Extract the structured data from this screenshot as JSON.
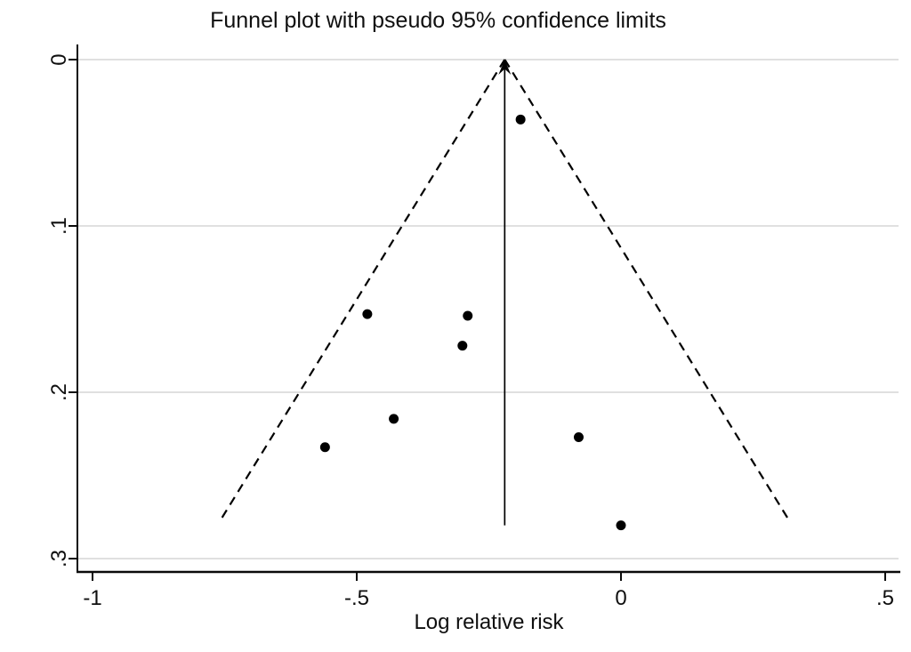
{
  "title": "Funnel plot with pseudo 95% confidence limits",
  "colors": {
    "background": "#ffffff",
    "axis": "#0a0a0a",
    "grid": "#dcdcdc",
    "point": "#000000",
    "funnel_line": "#000000",
    "text": "#0f0f0f"
  },
  "chart_data": {
    "type": "scatter",
    "subtype": "funnel-plot",
    "title": "Funnel plot with pseudo 95% confidence limits",
    "xlabel": "Log relative risk",
    "ylabel": "",
    "x_ticks": {
      "labels": [
        "-1",
        "-.5",
        "0",
        ".5"
      ],
      "values": [
        -1,
        -0.5,
        0,
        0.5
      ]
    },
    "y_ticks": {
      "labels": [
        "0",
        ".1",
        ".2",
        ".3"
      ],
      "values": [
        0,
        0.1,
        0.2,
        0.3
      ]
    },
    "xlim": [
      -1.03,
      0.53
    ],
    "ylim": [
      0,
      0.308
    ],
    "y_axis_inverted": true,
    "grid": true,
    "legend": false,
    "points": [
      {
        "x": -0.19,
        "y": 0.036
      },
      {
        "x": -0.48,
        "y": 0.153
      },
      {
        "x": -0.29,
        "y": 0.154
      },
      {
        "x": -0.3,
        "y": 0.172
      },
      {
        "x": -0.43,
        "y": 0.216
      },
      {
        "x": -0.56,
        "y": 0.233
      },
      {
        "x": -0.08,
        "y": 0.227
      },
      {
        "x": 0.0,
        "y": 0.28
      }
    ],
    "pooled_effect_line": {
      "x": -0.22,
      "y_from": 0,
      "y_to": 0.28,
      "arrowhead": "up"
    },
    "confidence_limit_lines": [
      {
        "x1": -0.22,
        "y1": 0,
        "x2": -0.76,
        "y2": 0.278
      },
      {
        "x1": -0.22,
        "y1": 0,
        "x2": 0.32,
        "y2": 0.278
      }
    ]
  }
}
